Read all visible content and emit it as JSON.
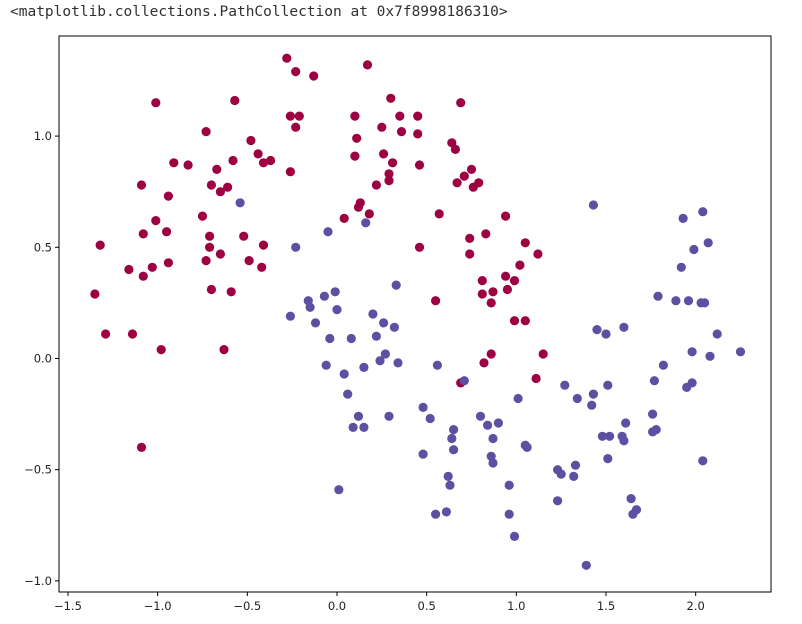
{
  "output_repr": "<matplotlib.collections.PathCollection at 0x7f8998186310>",
  "chart_data": {
    "type": "scatter",
    "title": "",
    "xlabel": "",
    "ylabel": "",
    "xlim": [
      -1.55,
      2.42
    ],
    "ylim": [
      -1.05,
      1.45
    ],
    "grid": false,
    "legend": "none",
    "x_ticks": [
      -1.5,
      -1.0,
      -0.5,
      0.0,
      0.5,
      1.0,
      1.5,
      2.0
    ],
    "x_tick_labels": [
      "−1.5",
      "−1.0",
      "−0.5",
      "0.0",
      "0.5",
      "1.0",
      "1.5",
      "2.0"
    ],
    "y_ticks": [
      -1.0,
      -0.5,
      0.0,
      0.5,
      1.0
    ],
    "y_tick_labels": [
      "−1.0",
      "−0.5",
      "0.0",
      "0.5",
      "1.0"
    ],
    "series": [
      {
        "color": "#9e0142",
        "points": [
          [
            -1.35,
            0.29
          ],
          [
            -1.32,
            0.51
          ],
          [
            -1.29,
            0.11
          ],
          [
            -1.16,
            0.4
          ],
          [
            -1.14,
            0.11
          ],
          [
            -1.09,
            0.78
          ],
          [
            -1.08,
            0.56
          ],
          [
            -1.08,
            0.37
          ],
          [
            -1.09,
            -0.4
          ],
          [
            -1.03,
            0.41
          ],
          [
            -1.01,
            0.62
          ],
          [
            -1.01,
            1.15
          ],
          [
            -0.98,
            0.04
          ],
          [
            -0.95,
            0.57
          ],
          [
            -0.94,
            0.73
          ],
          [
            -0.94,
            0.43
          ],
          [
            -0.91,
            0.88
          ],
          [
            -0.83,
            0.87
          ],
          [
            -0.75,
            0.64
          ],
          [
            -0.73,
            1.02
          ],
          [
            -0.73,
            0.44
          ],
          [
            -0.71,
            0.5
          ],
          [
            -0.71,
            0.55
          ],
          [
            -0.7,
            0.31
          ],
          [
            -0.7,
            0.78
          ],
          [
            -0.67,
            0.85
          ],
          [
            -0.65,
            0.75
          ],
          [
            -0.65,
            0.47
          ],
          [
            -0.63,
            0.04
          ],
          [
            -0.61,
            0.77
          ],
          [
            -0.59,
            0.3
          ],
          [
            -0.58,
            0.89
          ],
          [
            -0.57,
            1.16
          ],
          [
            -0.52,
            0.55
          ],
          [
            -0.49,
            0.44
          ],
          [
            -0.48,
            0.98
          ],
          [
            -0.44,
            0.92
          ],
          [
            -0.42,
            0.41
          ],
          [
            -0.41,
            0.51
          ],
          [
            -0.41,
            0.88
          ],
          [
            -0.37,
            0.89
          ],
          [
            -0.28,
            1.35
          ],
          [
            -0.26,
            0.84
          ],
          [
            -0.26,
            1.09
          ],
          [
            -0.23,
            1.29
          ],
          [
            -0.23,
            1.04
          ],
          [
            -0.21,
            1.09
          ],
          [
            -0.13,
            1.27
          ],
          [
            0.04,
            0.63
          ],
          [
            0.1,
            1.09
          ],
          [
            0.1,
            0.91
          ],
          [
            0.11,
            0.99
          ],
          [
            0.12,
            0.68
          ],
          [
            0.13,
            0.7
          ],
          [
            0.17,
            1.32
          ],
          [
            0.18,
            0.65
          ],
          [
            0.22,
            0.78
          ],
          [
            0.25,
            1.04
          ],
          [
            0.26,
            0.92
          ],
          [
            0.29,
            0.8
          ],
          [
            0.29,
            0.83
          ],
          [
            0.3,
            1.17
          ],
          [
            0.31,
            0.88
          ],
          [
            0.35,
            1.09
          ],
          [
            0.36,
            1.02
          ],
          [
            0.45,
            1.09
          ],
          [
            0.45,
            1.01
          ],
          [
            0.46,
            0.87
          ],
          [
            0.46,
            0.5
          ],
          [
            0.55,
            0.26
          ],
          [
            0.57,
            0.65
          ],
          [
            0.64,
            0.97
          ],
          [
            0.66,
            0.94
          ],
          [
            0.67,
            0.79
          ],
          [
            0.69,
            1.15
          ],
          [
            0.69,
            -0.11
          ],
          [
            0.71,
            0.82
          ],
          [
            0.74,
            0.54
          ],
          [
            0.74,
            0.47
          ],
          [
            0.75,
            0.85
          ],
          [
            0.76,
            0.77
          ],
          [
            0.79,
            0.79
          ],
          [
            0.81,
            0.29
          ],
          [
            0.81,
            0.35
          ],
          [
            0.82,
            -0.02
          ],
          [
            0.83,
            0.56
          ],
          [
            0.86,
            0.02
          ],
          [
            0.86,
            0.25
          ],
          [
            0.87,
            0.3
          ],
          [
            0.94,
            0.64
          ],
          [
            0.94,
            0.37
          ],
          [
            0.95,
            0.31
          ],
          [
            0.99,
            0.35
          ],
          [
            0.99,
            0.17
          ],
          [
            1.02,
            0.42
          ],
          [
            1.05,
            0.52
          ],
          [
            1.05,
            0.17
          ],
          [
            1.11,
            -0.09
          ],
          [
            1.12,
            0.47
          ],
          [
            1.15,
            0.02
          ]
        ]
      },
      {
        "color": "#5e4fa2",
        "points": [
          [
            -0.54,
            0.7
          ],
          [
            -0.26,
            0.19
          ],
          [
            -0.23,
            0.5
          ],
          [
            -0.16,
            0.26
          ],
          [
            -0.15,
            0.23
          ],
          [
            -0.12,
            0.16
          ],
          [
            -0.07,
            0.28
          ],
          [
            -0.06,
            -0.03
          ],
          [
            -0.05,
            0.57
          ],
          [
            -0.04,
            0.09
          ],
          [
            -0.01,
            0.3
          ],
          [
            0.0,
            0.22
          ],
          [
            0.01,
            -0.59
          ],
          [
            0.04,
            -0.07
          ],
          [
            0.06,
            -0.16
          ],
          [
            0.08,
            0.09
          ],
          [
            0.09,
            -0.31
          ],
          [
            0.12,
            -0.26
          ],
          [
            0.15,
            -0.04
          ],
          [
            0.15,
            -0.31
          ],
          [
            0.16,
            0.61
          ],
          [
            0.2,
            0.2
          ],
          [
            0.22,
            0.1
          ],
          [
            0.24,
            -0.01
          ],
          [
            0.26,
            0.16
          ],
          [
            0.27,
            0.02
          ],
          [
            0.29,
            -0.26
          ],
          [
            0.32,
            0.14
          ],
          [
            0.33,
            0.33
          ],
          [
            0.34,
            -0.02
          ],
          [
            0.48,
            -0.22
          ],
          [
            0.48,
            -0.43
          ],
          [
            0.52,
            -0.27
          ],
          [
            0.55,
            -0.7
          ],
          [
            0.56,
            -0.03
          ],
          [
            0.61,
            -0.69
          ],
          [
            0.62,
            -0.53
          ],
          [
            0.63,
            -0.57
          ],
          [
            0.64,
            -0.36
          ],
          [
            0.65,
            -0.32
          ],
          [
            0.65,
            -0.41
          ],
          [
            0.71,
            -0.1
          ],
          [
            0.8,
            -0.26
          ],
          [
            0.84,
            -0.3
          ],
          [
            0.86,
            -0.44
          ],
          [
            0.87,
            -0.47
          ],
          [
            0.87,
            -0.36
          ],
          [
            0.9,
            -0.29
          ],
          [
            0.96,
            -0.57
          ],
          [
            0.96,
            -0.7
          ],
          [
            0.99,
            -0.8
          ],
          [
            1.01,
            -0.18
          ],
          [
            1.05,
            -0.39
          ],
          [
            1.06,
            -0.4
          ],
          [
            1.23,
            -0.5
          ],
          [
            1.23,
            -0.64
          ],
          [
            1.25,
            -0.52
          ],
          [
            1.27,
            -0.12
          ],
          [
            1.32,
            -0.53
          ],
          [
            1.33,
            -0.48
          ],
          [
            1.34,
            -0.18
          ],
          [
            1.39,
            -0.93
          ],
          [
            1.42,
            -0.21
          ],
          [
            1.43,
            0.69
          ],
          [
            1.43,
            -0.16
          ],
          [
            1.45,
            0.13
          ],
          [
            1.48,
            -0.35
          ],
          [
            1.5,
            0.11
          ],
          [
            1.51,
            -0.45
          ],
          [
            1.51,
            -0.12
          ],
          [
            1.52,
            -0.35
          ],
          [
            1.59,
            -0.35
          ],
          [
            1.6,
            0.14
          ],
          [
            1.6,
            -0.37
          ],
          [
            1.61,
            -0.29
          ],
          [
            1.64,
            -0.63
          ],
          [
            1.65,
            -0.7
          ],
          [
            1.67,
            -0.68
          ],
          [
            1.76,
            -0.25
          ],
          [
            1.76,
            -0.33
          ],
          [
            1.77,
            -0.1
          ],
          [
            1.78,
            -0.32
          ],
          [
            1.79,
            0.28
          ],
          [
            1.82,
            -0.03
          ],
          [
            1.89,
            0.26
          ],
          [
            1.92,
            0.41
          ],
          [
            1.93,
            0.63
          ],
          [
            1.95,
            -0.13
          ],
          [
            1.96,
            0.26
          ],
          [
            1.98,
            -0.11
          ],
          [
            1.98,
            0.03
          ],
          [
            1.99,
            0.49
          ],
          [
            2.03,
            0.25
          ],
          [
            2.04,
            0.66
          ],
          [
            2.04,
            -0.46
          ],
          [
            2.05,
            0.25
          ],
          [
            2.07,
            0.52
          ],
          [
            2.08,
            0.01
          ],
          [
            2.12,
            0.11
          ],
          [
            2.25,
            0.03
          ]
        ]
      }
    ]
  }
}
